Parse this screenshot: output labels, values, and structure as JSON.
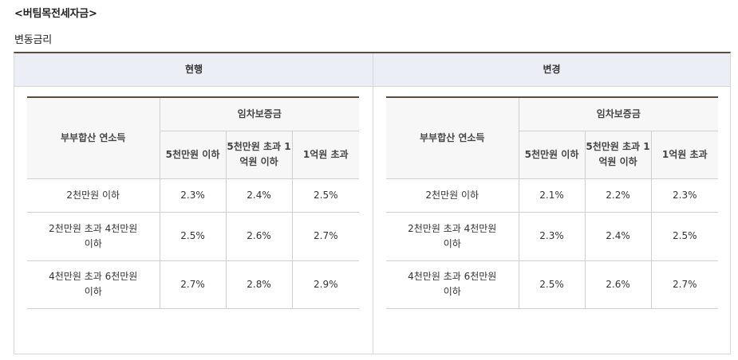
{
  "title": "<버팀목전세자금>",
  "subtitle": "변동금리",
  "columns": {
    "current": "현행",
    "changed": "변경"
  },
  "table_headers": {
    "income": "부부합산 연소득",
    "deposit": "임차보증금",
    "deposit_ranges": [
      "5천만원 이하",
      "5천만원 초과 1억원 이하",
      "1억원 초과"
    ]
  },
  "income_rows": [
    "2천만원 이하",
    "2천만원 초과 4천만원 이하",
    "4천만원 초과 6천만원 이하"
  ],
  "current_rates": [
    [
      "2.3%",
      "2.4%",
      "2.5%"
    ],
    [
      "2.5%",
      "2.6%",
      "2.7%"
    ],
    [
      "2.7%",
      "2.8%",
      "2.9%"
    ]
  ],
  "changed_rates": [
    [
      "2.1%",
      "2.2%",
      "2.3%"
    ],
    [
      "2.3%",
      "2.4%",
      "2.5%"
    ],
    [
      "2.5%",
      "2.6%",
      "2.7%"
    ]
  ]
}
